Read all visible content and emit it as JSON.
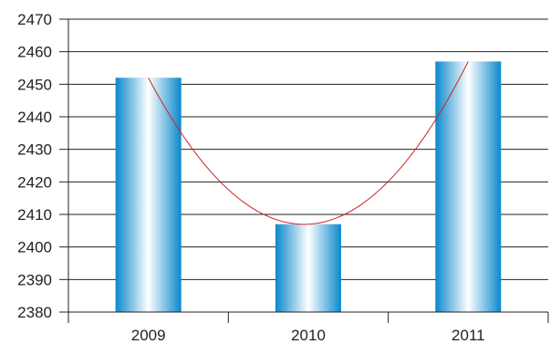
{
  "chart_data": {
    "type": "bar",
    "title": "",
    "xlabel": "",
    "ylabel": "",
    "categories": [
      "2009",
      "2010",
      "2011"
    ],
    "values": [
      2452,
      2407,
      2457
    ],
    "ylim": [
      2380,
      2470
    ],
    "yticks": [
      "2380",
      "2390",
      "2400",
      "2410",
      "2420",
      "2430",
      "2440",
      "2450",
      "2460",
      "2470"
    ],
    "grid": true,
    "legend": "none",
    "trendline": {
      "type": "polynomial",
      "degree": 2,
      "color": "#cc2222"
    },
    "colors": {
      "bar_edge": "#0a88cc",
      "bar_center": "#ffffff",
      "grid": "#222222"
    }
  }
}
